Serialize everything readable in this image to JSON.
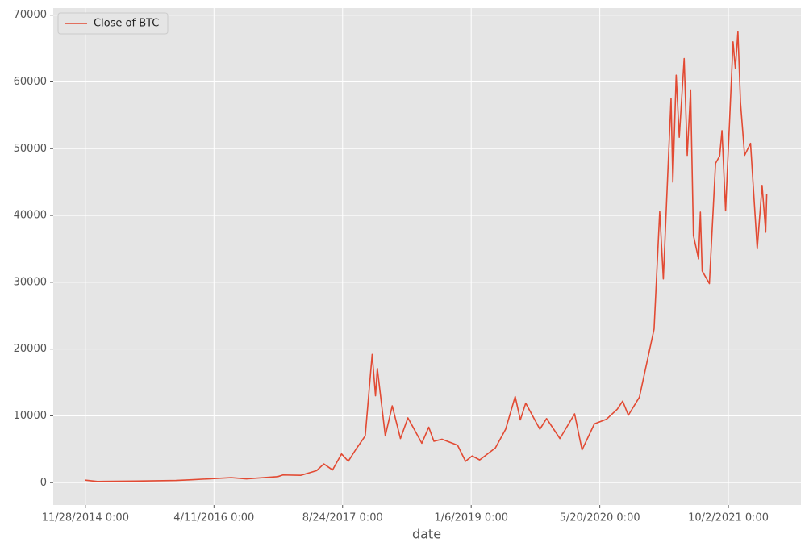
{
  "chart_data": {
    "type": "line",
    "x_label": "date",
    "x": [
      "11/28/2014 0:00",
      "1/14/2015 0:00",
      "6/15/2015 0:00",
      "11/15/2015 0:00",
      "1/15/2016 0:00",
      "6/17/2016 0:00",
      "8/15/2016 0:00",
      "12/15/2016 0:00",
      "1/4/2017 0:00",
      "3/15/2017 0:00",
      "5/15/2017 0:00",
      "6/12/2017 0:00",
      "7/16/2017 0:00",
      "8/20/2017 0:00",
      "9/15/2017 0:00",
      "10/15/2017 0:00",
      "11/20/2017 0:00",
      "12/17/2017 0:00",
      "12/30/2017 0:00",
      "1/6/2018 0:00",
      "2/6/2018 0:00",
      "3/5/2018 0:00",
      "4/6/2018 0:00",
      "5/5/2018 0:00",
      "6/28/2018 0:00",
      "7/25/2018 0:00",
      "8/14/2018 0:00",
      "9/15/2018 0:00",
      "11/14/2018 0:00",
      "12/15/2018 0:00",
      "1/10/2019 0:00",
      "2/8/2019 0:00",
      "4/10/2019 0:00",
      "5/20/2019 0:00",
      "6/26/2019 0:00",
      "7/16/2019 0:00",
      "8/6/2019 0:00",
      "9/30/2019 0:00",
      "10/26/2019 0:00",
      "12/17/2019 0:00",
      "2/12/2020 0:00",
      "3/12/2020 0:00",
      "4/29/2020 0:00",
      "6/15/2020 0:00",
      "7/27/2020 0:00",
      "8/17/2020 0:00",
      "9/8/2020 0:00",
      "10/21/2020 0:00",
      "11/18/2020 0:00",
      "12/17/2020 0:00",
      "1/8/2021 0:00",
      "1/22/2021 0:00",
      "2/8/2021 0:00",
      "2/21/2021 0:00",
      "2/28/2021 0:00",
      "3/13/2021 0:00",
      "3/25/2021 0:00",
      "4/13/2021 0:00",
      "4/25/2021 0:00",
      "5/8/2021 0:00",
      "5/19/2021 0:00",
      "6/8/2021 0:00",
      "6/15/2021 0:00",
      "6/22/2021 0:00",
      "7/20/2021 0:00",
      "8/13/2021 0:00",
      "8/29/2021 0:00",
      "9/7/2021 0:00",
      "9/21/2021 0:00",
      "10/15/2021 0:00",
      "10/20/2021 0:00",
      "10/29/2021 0:00",
      "11/8/2021 0:00",
      "11/18/2021 0:00",
      "12/4/2021 0:00",
      "12/27/2021 0:00",
      "1/22/2022 0:00",
      "2/10/2022 0:00",
      "2/24/2022 0:00",
      "2/28/2022 0:00"
    ],
    "series": [
      {
        "name": "Close of BTC",
        "color": "#e24a33",
        "values": [
          375,
          180,
          230,
          330,
          430,
          750,
          570,
          900,
          1150,
          1100,
          1800,
          2800,
          1900,
          4300,
          3200,
          5000,
          7000,
          19200,
          13000,
          17100,
          7000,
          11500,
          6600,
          9700,
          5900,
          8300,
          6200,
          6500,
          5600,
          3200,
          4000,
          3400,
          5200,
          8000,
          12900,
          9400,
          11900,
          8000,
          9600,
          6600,
          10300,
          4900,
          8800,
          9500,
          11000,
          12200,
          10100,
          12800,
          17800,
          23000,
          40600,
          30500,
          46000,
          57500,
          45000,
          61000,
          51700,
          63500,
          49000,
          58800,
          37000,
          33500,
          40500,
          31700,
          29800,
          47800,
          48900,
          52700,
          40700,
          61500,
          66000,
          62000,
          67500,
          56900,
          49000,
          50800,
          35000,
          44500,
          37500,
          43200
        ]
      }
    ],
    "xlim": [
      "7/26/2014 0:00",
      "7/11/2022 0:00"
    ],
    "xticks": [
      "11/28/2014 0:00",
      "4/11/2016 0:00",
      "8/24/2017 0:00",
      "1/6/2019 0:00",
      "5/20/2020 0:00",
      "10/2/2021 0:00"
    ],
    "ylim": [
      -3350,
      71050
    ],
    "yticks": [
      0,
      10000,
      20000,
      30000,
      40000,
      50000,
      60000,
      70000
    ],
    "grid": true,
    "legend": "upper left"
  }
}
